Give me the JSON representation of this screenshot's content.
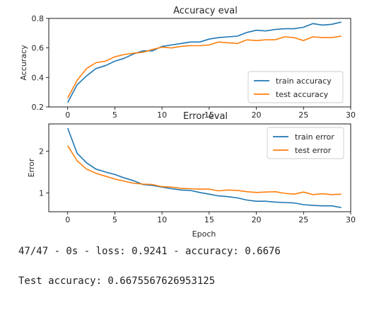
{
  "chart_data": [
    {
      "type": "line",
      "title": "Accuracy eval",
      "xlabel": "",
      "ylabel": "Accuracy",
      "xlim": [
        -2,
        30
      ],
      "ylim": [
        0.2,
        0.8
      ],
      "xticks": [
        0,
        5,
        10,
        15,
        20,
        25,
        30
      ],
      "yticks": [
        0.2,
        0.4,
        0.6,
        0.8
      ],
      "ytick_labels": [
        "0.2",
        "0.4",
        "0.6",
        "0.8"
      ],
      "grid": false,
      "legend_position": "lower-right",
      "x": [
        0,
        1,
        2,
        3,
        4,
        5,
        6,
        7,
        8,
        9,
        10,
        11,
        12,
        13,
        14,
        15,
        16,
        17,
        18,
        19,
        20,
        21,
        22,
        23,
        24,
        25,
        26,
        27,
        28,
        29
      ],
      "series": [
        {
          "name": "train accuracy",
          "color": "#1f77b4",
          "values": [
            0.23,
            0.35,
            0.41,
            0.46,
            0.48,
            0.51,
            0.53,
            0.56,
            0.58,
            0.58,
            0.61,
            0.62,
            0.63,
            0.64,
            0.64,
            0.66,
            0.67,
            0.675,
            0.68,
            0.705,
            0.72,
            0.715,
            0.725,
            0.73,
            0.73,
            0.74,
            0.765,
            0.755,
            0.76,
            0.775
          ]
        },
        {
          "name": "test accuracy",
          "color": "#ff7f0e",
          "values": [
            0.26,
            0.38,
            0.46,
            0.5,
            0.51,
            0.54,
            0.555,
            0.565,
            0.57,
            0.59,
            0.605,
            0.6,
            0.61,
            0.615,
            0.615,
            0.62,
            0.64,
            0.635,
            0.63,
            0.655,
            0.65,
            0.655,
            0.655,
            0.675,
            0.67,
            0.65,
            0.675,
            0.67,
            0.67,
            0.68
          ]
        }
      ]
    },
    {
      "type": "line",
      "title": "Error eval",
      "xlabel": "Epoch",
      "ylabel": "Error",
      "xlim": [
        -2,
        30
      ],
      "ylim": [
        0.55,
        2.65
      ],
      "xticks": [
        0,
        5,
        10,
        15,
        20,
        25,
        30
      ],
      "yticks": [
        1,
        2
      ],
      "ytick_labels": [
        "1",
        "2"
      ],
      "grid": false,
      "legend_position": "upper-right",
      "x": [
        0,
        1,
        2,
        3,
        4,
        5,
        6,
        7,
        8,
        9,
        10,
        11,
        12,
        13,
        14,
        15,
        16,
        17,
        18,
        19,
        20,
        21,
        22,
        23,
        24,
        25,
        26,
        27,
        28,
        29
      ],
      "series": [
        {
          "name": "train error",
          "color": "#1f77b4",
          "values": [
            2.55,
            1.95,
            1.72,
            1.57,
            1.5,
            1.44,
            1.36,
            1.29,
            1.2,
            1.18,
            1.14,
            1.1,
            1.07,
            1.06,
            1.01,
            0.97,
            0.93,
            0.91,
            0.88,
            0.83,
            0.8,
            0.8,
            0.78,
            0.77,
            0.76,
            0.72,
            0.7,
            0.69,
            0.69,
            0.65
          ]
        },
        {
          "name": "test error",
          "color": "#ff7f0e",
          "values": [
            2.13,
            1.77,
            1.57,
            1.47,
            1.4,
            1.33,
            1.28,
            1.23,
            1.21,
            1.2,
            1.15,
            1.14,
            1.11,
            1.1,
            1.09,
            1.09,
            1.05,
            1.07,
            1.06,
            1.03,
            1.01,
            1.02,
            1.03,
            0.99,
            0.97,
            1.02,
            0.96,
            0.98,
            0.96,
            0.97
          ]
        }
      ]
    }
  ],
  "output": {
    "line1": "47/47 - 0s - loss: 0.9241 - accuracy: 0.6676",
    "line2": "Test accuracy: 0.6675567626953125"
  }
}
